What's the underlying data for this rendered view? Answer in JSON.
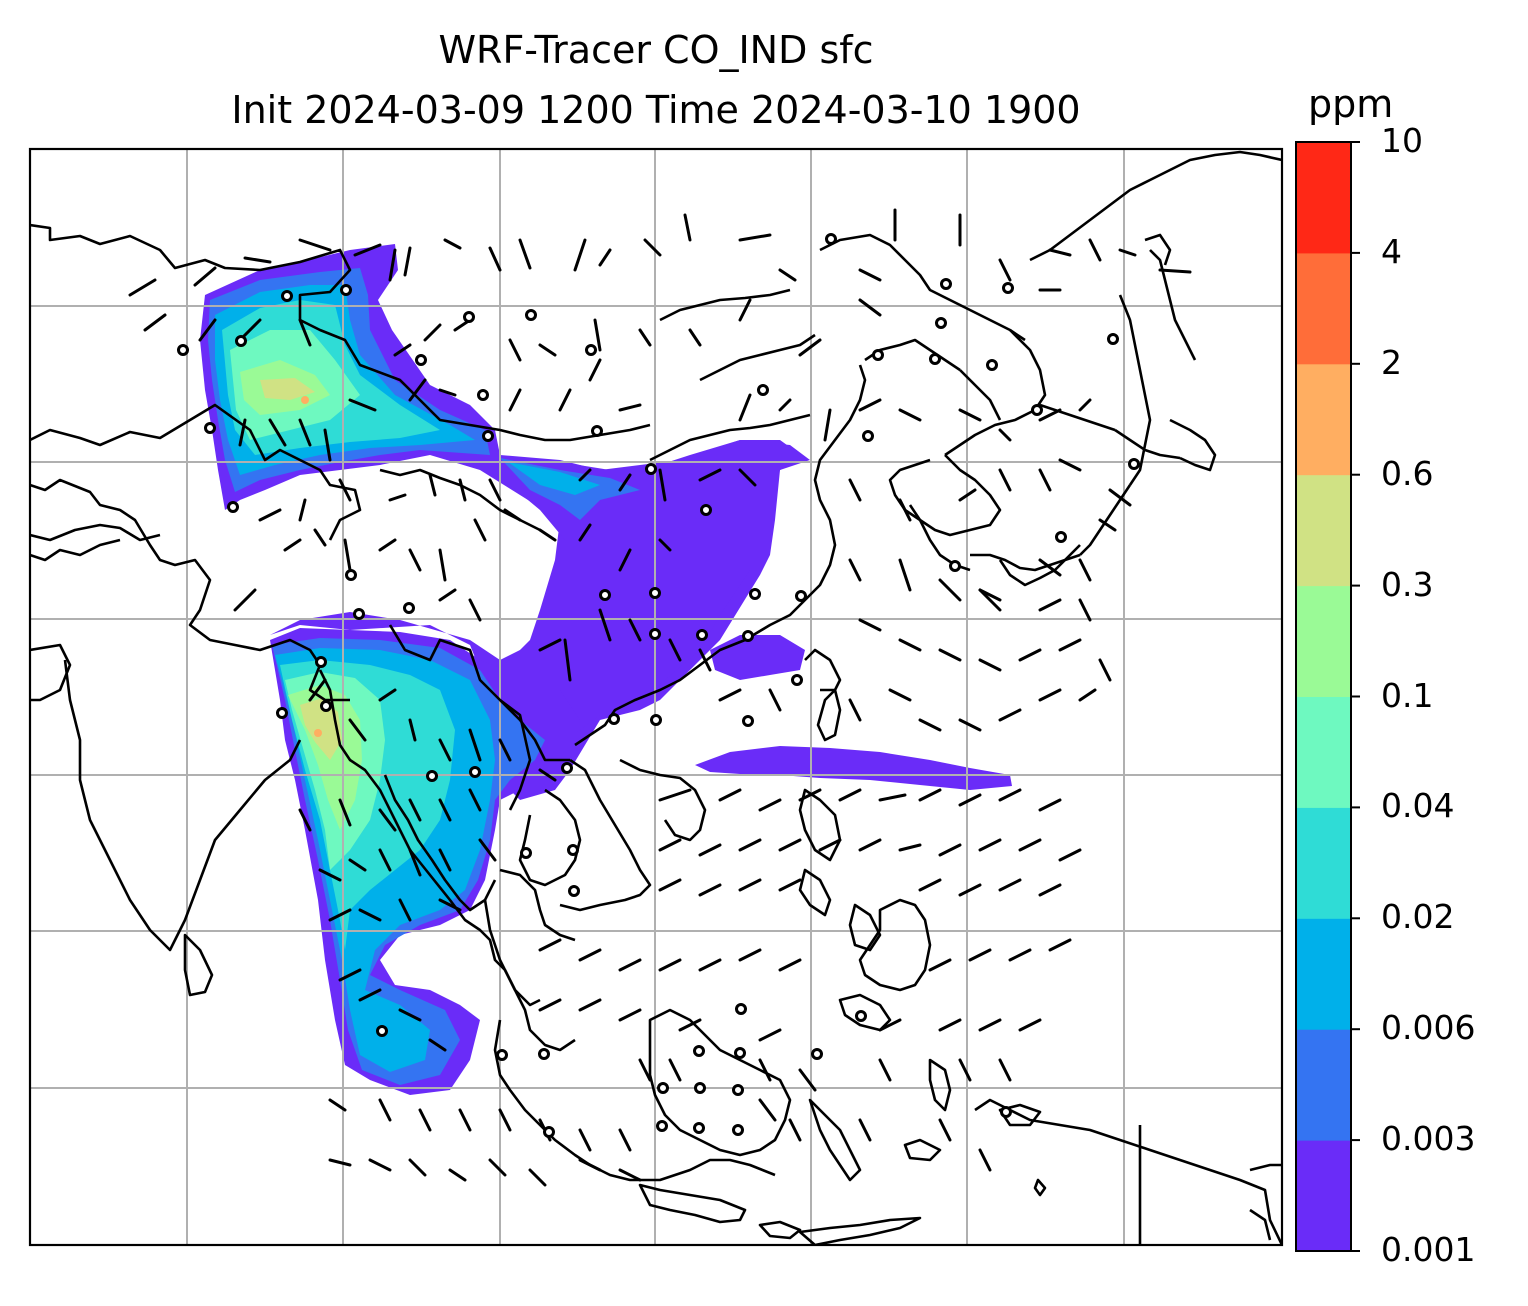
{
  "title": {
    "line1": "WRF-Tracer CO_IND sfc",
    "line2": "Init 2024-03-09 1200 Time 2024-03-10 1900"
  },
  "colorbar": {
    "unit": "ppm",
    "levels": [
      "0.001",
      "0.003",
      "0.006",
      "0.02",
      "0.04",
      "0.1",
      "0.3",
      "0.6",
      "2",
      "4",
      "10"
    ],
    "colors": [
      "#6a2cf8",
      "#3474f2",
      "#00b0ea",
      "#2fdcd6",
      "#6ef9c0",
      "#9afa96",
      "#d0e284",
      "#ffae61",
      "#ff6d39",
      "#ff2816"
    ]
  },
  "map": {
    "background": "#ffffff",
    "coastline_color": "#000000",
    "gridline_color": "#b0b0b0",
    "barb_color": "#000000"
  }
}
